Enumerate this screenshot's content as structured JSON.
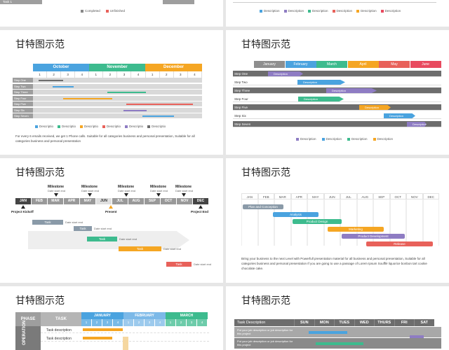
{
  "titles": {
    "t1": "甘特图示范",
    "t2": "甘特图示范",
    "t3": "甘特图示范",
    "t4": "甘特图示范",
    "t5": "甘特图示范",
    "t6": "甘特图示范"
  },
  "top_left": {
    "task_label": "Task 1",
    "legend": [
      "Completed",
      "Unfinished"
    ]
  },
  "top_right": {
    "legend": [
      "Description",
      "Description",
      "Description",
      "Description",
      "Description",
      "Description"
    ]
  },
  "s1": {
    "months": [
      "October",
      "November",
      "December"
    ],
    "weeks": [
      "1",
      "2",
      "3",
      "4",
      "1",
      "2",
      "3",
      "4",
      "1",
      "2",
      "3",
      "4"
    ],
    "steps": [
      "Step One",
      "Step Two",
      "Step Three",
      "Step Four",
      "Step Five",
      "Step Six",
      "Step Seven"
    ],
    "legend": [
      "Descriptio",
      "Descriptio",
      "Descriptio",
      "Descriptio",
      "Descriptio",
      "Descriptio"
    ],
    "note": "For every 6 emails received, we get 1 Phone calls. Suitable for all categories business and personal presentation, Suitable for all categories business and personal presentation"
  },
  "s2": {
    "months": [
      "January",
      "February",
      "March",
      "April",
      "May",
      "June"
    ],
    "steps": [
      "Step One",
      "Step Two",
      "Step Three",
      "Step Four",
      "Step Five",
      "Step Six",
      "Step Seven"
    ],
    "bar_label": "Description",
    "legend": [
      "Description",
      "Description",
      "Description",
      "Description"
    ]
  },
  "s3": {
    "milestone": "Milestone",
    "date": "Date start end",
    "months": [
      "JAN",
      "FEB",
      "MAR",
      "APR",
      "MAY",
      "JUN",
      "JUL",
      "AUG",
      "SEP",
      "OCT",
      "NOV",
      "DEC"
    ],
    "kickoff": "Project Kickoff",
    "present": "Present",
    "end": "Project End",
    "task": "Task",
    "date2": "Date start end"
  },
  "s4": {
    "months": [
      "JAN",
      "FEB",
      "MAR",
      "APR",
      "MAY",
      "JUN",
      "JUL",
      "AUG",
      "SEP",
      "OCT",
      "NOV",
      "DEC"
    ],
    "bars": [
      "Plan and Conception",
      "Analysis",
      "Product Design",
      "Marketing",
      "Product Development",
      "Release"
    ],
    "note": "Bring your business to the next Level with Powerfull presentation material for all business and personal presentation, Suitable for all categories business and personal presentation If you are going to use a passage of Lorem Ipsum Soufflé liquorice bonbon tart cookie chocolate cake."
  },
  "s5": {
    "phase": "PHASE",
    "task": "TASK",
    "months": [
      "JANUARY",
      "FEBRUARY",
      "MARCH"
    ],
    "weeks": [
      "1",
      "2",
      "3",
      "4",
      "1",
      "2",
      "3",
      "4",
      "1",
      "2",
      "3",
      "4"
    ],
    "phase_label": "OPERATION",
    "tasks": [
      "Task description",
      "Task description"
    ]
  },
  "s6": {
    "header": "Task Description",
    "days": [
      "SUN",
      "MON",
      "TUES",
      "WED",
      "THURS",
      "FRI",
      "SAT"
    ],
    "rows": [
      "Put your job description or job description for this project",
      "Put your job description or job description for this project"
    ]
  },
  "colors": {
    "blue": "#4aa3df",
    "green": "#3dbb8e",
    "orange": "#f5a623",
    "red": "#e8615a",
    "purple": "#8e7cc3",
    "gray": "#6d6d6d"
  }
}
